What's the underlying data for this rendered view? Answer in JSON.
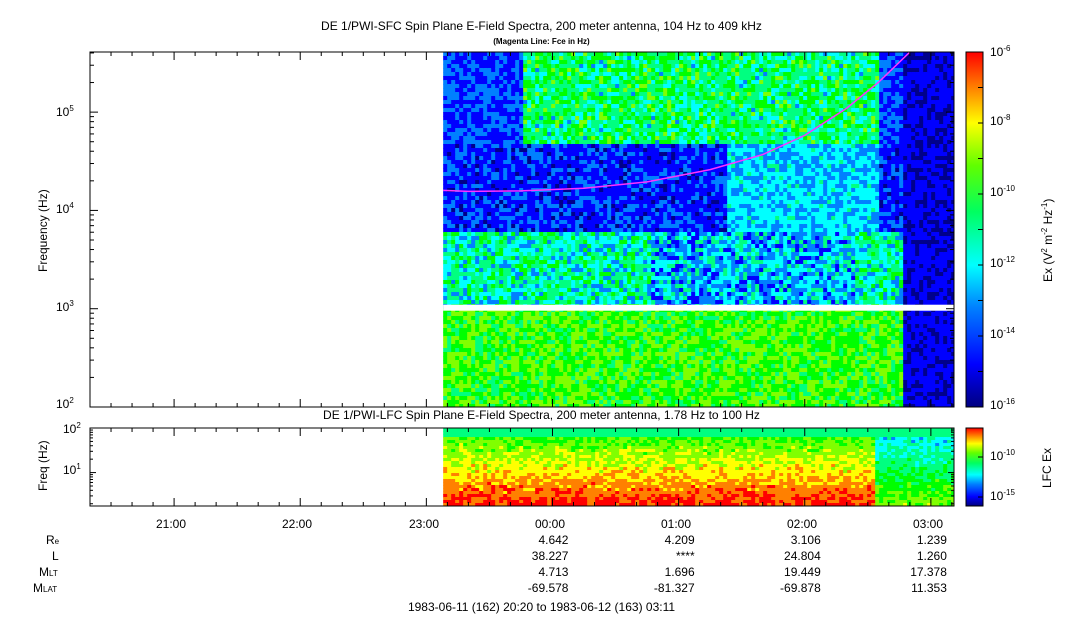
{
  "chart_data": [
    {
      "type": "heatmap",
      "title": "DE 1/PWI-SFC  Spin Plane E-Field Spectra, 200 meter antenna, 104 Hz to 409 kHz",
      "subtitle": "(Magenta Line: Fce in Hz)",
      "ylabel": "Frequency (Hz)",
      "yscale": "log",
      "ylim": [
        100,
        409000
      ],
      "yticks": [
        "10",
        "10",
        "10",
        "10"
      ],
      "ytick_exps": [
        "2",
        "3",
        "4",
        "5"
      ],
      "colorbar_label": "Ex (V",
      "colorbar_label_rest": " m",
      "colorbar_label_tail": " Hz",
      "colorbar_ticks": [
        "10",
        "10",
        "10",
        "10",
        "10",
        "10"
      ],
      "colorbar_exps": [
        "-6",
        "-8",
        "-10",
        "-12",
        "-14",
        "-16"
      ],
      "colorbar_range": [
        1e-16,
        1e-06
      ],
      "data_start": "23:08",
      "fce_line_hz": [
        {
          "t": "23:08",
          "f": 16000
        },
        {
          "t": "23:20",
          "f": 15600
        },
        {
          "t": "23:45",
          "f": 15800
        },
        {
          "t": "00:15",
          "f": 16800
        },
        {
          "t": "00:45",
          "f": 19500
        },
        {
          "t": "01:15",
          "f": 26000
        },
        {
          "t": "01:40",
          "f": 37000
        },
        {
          "t": "02:00",
          "f": 58000
        },
        {
          "t": "02:20",
          "f": 110000
        },
        {
          "t": "02:35",
          "f": 200000
        },
        {
          "t": "02:50",
          "f": 409000
        }
      ]
    },
    {
      "type": "heatmap",
      "title": "DE 1/PWI-LFC  Spin Plane E-Field Spectra, 200 meter antenna, 1.78 Hz to 100 Hz",
      "ylabel": "Freq (Hz)",
      "yscale": "log",
      "ylim": [
        1.78,
        100
      ],
      "yticks": [
        "10",
        "10"
      ],
      "ytick_exps": [
        "1",
        "2"
      ],
      "colorbar_label": "LFC Ex",
      "colorbar_ticks": [
        "10",
        "10"
      ],
      "colorbar_exps": [
        "-10",
        "-15"
      ],
      "data_start": "23:08"
    }
  ],
  "x_axis": {
    "start": "20:20",
    "end": "03:11",
    "tick_labels": [
      "21:00",
      "22:00",
      "23:00",
      "00:00",
      "01:00",
      "02:00",
      "03:00"
    ]
  },
  "ephemeris": {
    "labels": [
      {
        "main": "R",
        "sub": "e"
      },
      {
        "main": "L",
        "sub": ""
      },
      {
        "main": "M",
        "sub": "LT"
      },
      {
        "main": "M",
        "sub": "LAT"
      }
    ],
    "columns": [
      "00:00",
      "01:00",
      "02:00",
      "03:00"
    ],
    "rows": [
      [
        "4.642",
        "4.209",
        "3.106",
        "1.239"
      ],
      [
        "38.227",
        "****",
        "24.804",
        "1.260"
      ],
      [
        "4.713",
        "1.696",
        "19.449",
        "17.378"
      ],
      [
        "-69.578",
        "-81.327",
        "-69.878",
        "11.353"
      ]
    ]
  },
  "footer": "1983-06-11 (162) 20:20 to 1983-06-12 (163) 03:11",
  "colors": {
    "fce_line": "#ff33ff",
    "colormap": [
      "#00008b",
      "#0000ff",
      "#0080ff",
      "#00ffff",
      "#00ff80",
      "#00ff00",
      "#80ff00",
      "#ffff00",
      "#ff8000",
      "#ff0000"
    ]
  }
}
